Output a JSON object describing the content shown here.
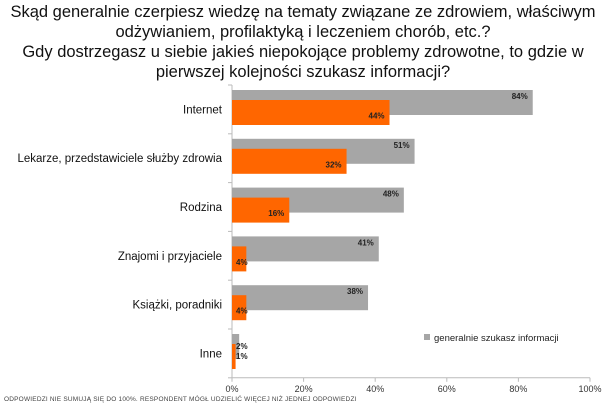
{
  "chart_data": {
    "type": "bar",
    "orientation": "horizontal",
    "title_lines": [
      "Skąd generalnie czerpiesz wiedzę na tematy związane ze zdrowiem, właściwym",
      "odżywianiem, profilaktyką i leczeniem chorób, etc.?",
      "Gdy dostrzegasz u siebie jakieś niepokojące problemy zdrowotne, to gdzie w",
      "pierwszej kolejności szukasz informacji?"
    ],
    "categories": [
      "Internet",
      "Lekarze, przedstawiciele służby zdrowia",
      "Rodzina",
      "Znajomi i przyjaciele",
      "Książki, poradniki",
      "Inne"
    ],
    "series": [
      {
        "name": "generalnie szukasz informacji",
        "color": "#A6A6A6",
        "values": [
          84,
          51,
          48,
          41,
          38,
          2
        ],
        "labels": [
          "84%",
          "51%",
          "48%",
          "41%",
          "38%",
          "2%"
        ]
      },
      {
        "color": "#FF6600",
        "values": [
          44,
          32,
          16,
          4,
          4,
          1
        ],
        "labels": [
          "44%",
          "32%",
          "16%",
          "4%",
          "4%",
          "1%"
        ]
      }
    ],
    "xlim": [
      0,
      100
    ],
    "xticks": [
      "0%",
      "20%",
      "40%",
      "60%",
      "80%",
      "100%"
    ],
    "grid": false,
    "legend_position": "right"
  },
  "footnote": "ODPOWIEDZI NIE SUMUJĄ SIĘ DO 100%. RESPONDENT MÓGŁ UDZIELIĆ WIĘCEJ NIŻ JEDNEJ ODPOWIEDZI"
}
